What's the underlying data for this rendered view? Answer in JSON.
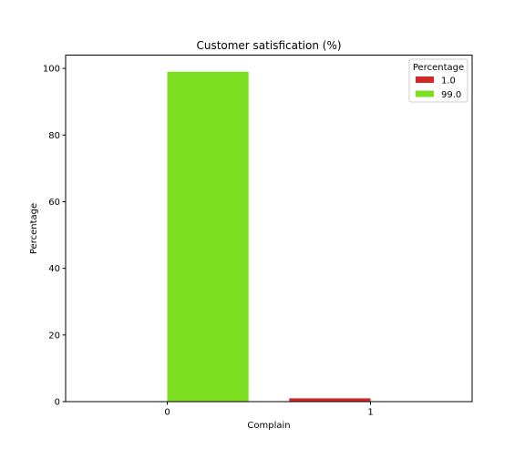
{
  "chart_data": {
    "type": "bar",
    "title": "Customer satisfication (%)",
    "xlabel": "Complain",
    "ylabel": "Percentage",
    "categories": [
      "0",
      "1"
    ],
    "ylim": [
      0,
      104
    ],
    "yticks": [
      0,
      20,
      40,
      60,
      80,
      100
    ],
    "series": [
      {
        "name": "1.0",
        "color": "#d62728",
        "values": [
          0,
          1.0
        ]
      },
      {
        "name": "99.0",
        "color": "#7ddf21",
        "values": [
          99.0,
          0
        ]
      }
    ],
    "legend": {
      "title": "Percentage",
      "placement": "top-right"
    },
    "grid": false
  }
}
